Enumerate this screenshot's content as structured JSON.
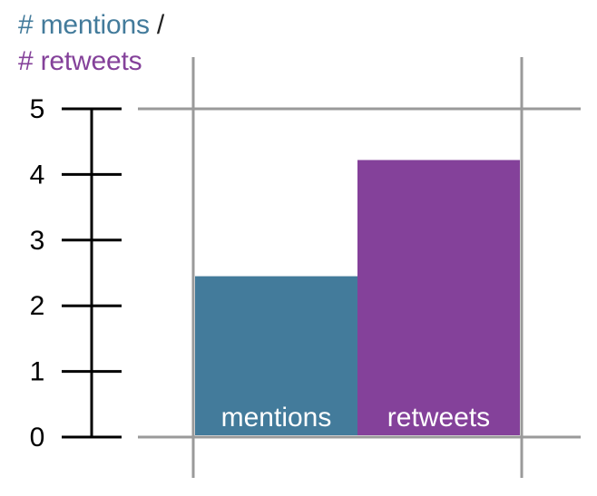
{
  "title": {
    "part1": "# mentions",
    "separator": " /",
    "part2": "# retweets"
  },
  "colors": {
    "mentions": "#437b9b",
    "retweets": "#84419a",
    "separator": "#222222",
    "frame": "#9a9a9a",
    "axis": "#000000",
    "bar_label": "#ffffff"
  },
  "chart_data": {
    "type": "bar",
    "categories": [
      "mentions",
      "retweets"
    ],
    "values": [
      2.45,
      4.22
    ],
    "y_ticks": [
      "0",
      "1",
      "2",
      "3",
      "4",
      "5"
    ],
    "ylim": [
      0,
      5
    ],
    "grid": false,
    "bar_labels_inside": true
  }
}
